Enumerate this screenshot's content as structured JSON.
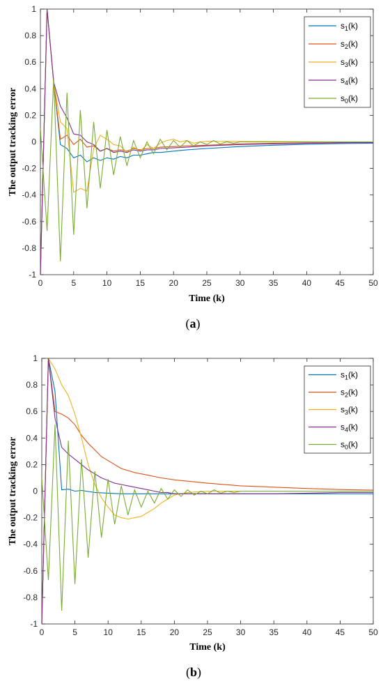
{
  "chart_data": [
    {
      "type": "line",
      "caption": "a",
      "xlabel": "Time (k)",
      "ylabel": "The output tracking error",
      "xlim": [
        0,
        50
      ],
      "ylim": [
        -1,
        1
      ],
      "xticks": [
        0,
        5,
        10,
        15,
        20,
        25,
        30,
        35,
        40,
        45,
        50
      ],
      "yticks": [
        -1,
        -0.8,
        -0.6,
        -0.4,
        -0.2,
        0,
        0.2,
        0.4,
        0.6,
        0.8,
        1
      ],
      "legend": "top-right",
      "series": [
        {
          "name": "s",
          "sub": "1",
          "suffix": "(k)",
          "color": "#0072BD",
          "x": [
            0,
            1,
            2,
            3,
            4,
            5,
            6,
            7,
            8,
            9,
            10,
            11,
            12,
            13,
            14,
            15,
            16,
            17,
            18,
            20,
            22,
            25,
            30,
            35,
            40,
            45,
            50
          ],
          "y": [
            -1,
            1,
            0.45,
            -0.02,
            -0.05,
            -0.12,
            -0.1,
            -0.15,
            -0.12,
            -0.14,
            -0.12,
            -0.13,
            -0.11,
            -0.12,
            -0.1,
            -0.1,
            -0.09,
            -0.08,
            -0.08,
            -0.07,
            -0.06,
            -0.05,
            -0.035,
            -0.025,
            -0.018,
            -0.013,
            -0.01
          ]
        },
        {
          "name": "s",
          "sub": "2",
          "suffix": "(k)",
          "color": "#D95319",
          "x": [
            0,
            1,
            2,
            3,
            4,
            5,
            6,
            7,
            8,
            9,
            10,
            11,
            12,
            13,
            14,
            15,
            16,
            17,
            18,
            20,
            22,
            25,
            30,
            35,
            40,
            45,
            50
          ],
          "y": [
            -1,
            1,
            0.45,
            0.02,
            0.05,
            -0.02,
            0.02,
            -0.04,
            -0.03,
            -0.07,
            -0.05,
            -0.07,
            -0.06,
            -0.07,
            -0.05,
            -0.06,
            -0.05,
            -0.05,
            -0.04,
            -0.035,
            -0.03,
            -0.025,
            -0.015,
            -0.01,
            -0.007,
            -0.005,
            -0.003
          ]
        },
        {
          "name": "s",
          "sub": "3",
          "suffix": "(k)",
          "color": "#EDB120",
          "x": [
            0,
            1,
            2,
            3,
            4,
            5,
            6,
            7,
            8,
            9,
            10,
            11,
            12,
            13,
            14,
            15,
            16,
            17,
            18,
            19,
            20,
            21,
            22,
            23,
            24,
            25,
            30,
            35,
            40,
            45,
            50
          ],
          "y": [
            -1,
            1,
            0.45,
            0.15,
            0.1,
            -0.38,
            -0.35,
            -0.37,
            -0.05,
            0.05,
            0.02,
            -0.02,
            -0.03,
            -0.08,
            -0.04,
            -0.07,
            -0.02,
            -0.05,
            -0.01,
            0.01,
            0.02,
            0,
            0.01,
            -0.01,
            0,
            0.005,
            0.003,
            0.002,
            0.001,
            0,
            0
          ]
        },
        {
          "name": "s",
          "sub": "4",
          "suffix": "(k)",
          "color": "#7E2F8E",
          "x": [
            0,
            1,
            2,
            3,
            4,
            5,
            6,
            7,
            8,
            9,
            10,
            11,
            12,
            13,
            14,
            15,
            16,
            17,
            18,
            20,
            22,
            25,
            30,
            35,
            40,
            45,
            50
          ],
          "y": [
            -1,
            1,
            0.45,
            0.27,
            0.18,
            0.06,
            0.05,
            0,
            -0.02,
            -0.07,
            -0.05,
            -0.08,
            -0.07,
            -0.08,
            -0.06,
            -0.07,
            -0.06,
            -0.06,
            -0.05,
            -0.045,
            -0.04,
            -0.03,
            -0.02,
            -0.015,
            -0.01,
            -0.007,
            -0.005
          ]
        },
        {
          "name": "s",
          "sub": "0",
          "suffix": "(k)",
          "color": "#77AC30",
          "x": [
            0,
            1,
            2,
            3,
            4,
            5,
            6,
            7,
            8,
            9,
            10,
            11,
            12,
            13,
            14,
            15,
            16,
            17,
            18,
            19,
            20,
            21,
            22,
            23,
            24,
            25,
            26,
            27,
            28,
            29,
            30,
            35,
            40,
            45,
            50
          ],
          "y": [
            0.1,
            -0.67,
            0.48,
            -0.9,
            0.37,
            -0.7,
            0.24,
            -0.5,
            0.15,
            -0.35,
            0.09,
            -0.25,
            0.04,
            -0.18,
            0.01,
            -0.12,
            0,
            -0.09,
            0.02,
            -0.06,
            0.01,
            -0.04,
            0.01,
            -0.03,
            0,
            -0.02,
            0.01,
            -0.015,
            0,
            -0.01,
            0,
            0,
            0,
            0,
            0
          ]
        }
      ]
    },
    {
      "type": "line",
      "caption": "b",
      "xlabel": "Time (k)",
      "ylabel": "The output tracking error",
      "xlim": [
        0,
        50
      ],
      "ylim": [
        -1,
        1
      ],
      "xticks": [
        0,
        5,
        10,
        15,
        20,
        25,
        30,
        35,
        40,
        45,
        50
      ],
      "yticks": [
        -1,
        -0.8,
        -0.6,
        -0.4,
        -0.2,
        0,
        0.2,
        0.4,
        0.6,
        0.8,
        1
      ],
      "legend": "top-right",
      "series": [
        {
          "name": "s",
          "sub": "1",
          "suffix": "(k)",
          "color": "#0072BD",
          "x": [
            0,
            1,
            2,
            3,
            4,
            5,
            6,
            8,
            10,
            12,
            15,
            20,
            25,
            30,
            35,
            40,
            45,
            50
          ],
          "y": [
            -1,
            1,
            0.75,
            0.01,
            0.015,
            0,
            0.005,
            -0.01,
            -0.015,
            -0.02,
            -0.02,
            -0.02,
            -0.02,
            -0.02,
            -0.02,
            -0.02,
            -0.02,
            -0.02
          ]
        },
        {
          "name": "s",
          "sub": "2",
          "suffix": "(k)",
          "color": "#D95319",
          "x": [
            0,
            1,
            2,
            3,
            4,
            5,
            6,
            7,
            8,
            9,
            10,
            12,
            14,
            16,
            18,
            20,
            22,
            25,
            30,
            35,
            40,
            45,
            50
          ],
          "y": [
            -1,
            1,
            0.6,
            0.58,
            0.55,
            0.5,
            0.42,
            0.36,
            0.31,
            0.26,
            0.23,
            0.17,
            0.14,
            0.12,
            0.1,
            0.085,
            0.075,
            0.06,
            0.04,
            0.03,
            0.02,
            0.012,
            0.008
          ]
        },
        {
          "name": "s",
          "sub": "3",
          "suffix": "(k)",
          "color": "#EDB120",
          "x": [
            0,
            1,
            2,
            3,
            4,
            5,
            6,
            7,
            8,
            9,
            10,
            11,
            12,
            13,
            14,
            15,
            16,
            17,
            18,
            19,
            20,
            21,
            22,
            25,
            30,
            35,
            40,
            45,
            50
          ],
          "y": [
            -1,
            1,
            0.92,
            0.8,
            0.72,
            0.58,
            0.4,
            0.2,
            0.05,
            -0.05,
            -0.12,
            -0.18,
            -0.2,
            -0.21,
            -0.2,
            -0.19,
            -0.16,
            -0.13,
            -0.09,
            -0.06,
            -0.03,
            -0.02,
            -0.01,
            0,
            0,
            0,
            0,
            0,
            0
          ]
        },
        {
          "name": "s",
          "sub": "4",
          "suffix": "(k)",
          "color": "#7E2F8E",
          "x": [
            0,
            1,
            2,
            3,
            4,
            5,
            6,
            7,
            8,
            9,
            10,
            11,
            12,
            13,
            14,
            15,
            16,
            17,
            18,
            19,
            20,
            22,
            25,
            30,
            35,
            40,
            45,
            50
          ],
          "y": [
            -1,
            1,
            0.55,
            0.33,
            0.28,
            0.24,
            0.2,
            0.16,
            0.13,
            0.1,
            0.08,
            0.06,
            0.05,
            0.04,
            0.03,
            0.02,
            0.01,
            0,
            -0.01,
            -0.01,
            -0.02,
            -0.02,
            -0.02,
            -0.02,
            -0.02,
            -0.015,
            -0.01,
            -0.01
          ]
        },
        {
          "name": "s",
          "sub": "0",
          "suffix": "(k)",
          "color": "#77AC30",
          "x": [
            0,
            1,
            2,
            3,
            4,
            5,
            6,
            7,
            8,
            9,
            10,
            11,
            12,
            13,
            14,
            15,
            16,
            17,
            18,
            19,
            20,
            21,
            22,
            23,
            24,
            25,
            26,
            27,
            28,
            29,
            30,
            35,
            40,
            45,
            50
          ],
          "y": [
            0.1,
            -0.67,
            0.5,
            -0.9,
            0.38,
            -0.7,
            0.24,
            -0.5,
            0.15,
            -0.35,
            0.09,
            -0.25,
            0.04,
            -0.18,
            0.01,
            -0.12,
            0,
            -0.09,
            0.02,
            -0.06,
            0.01,
            -0.04,
            0.01,
            -0.03,
            0,
            -0.02,
            0.01,
            -0.015,
            0,
            -0.01,
            0,
            0,
            0,
            0,
            0
          ]
        }
      ]
    }
  ]
}
